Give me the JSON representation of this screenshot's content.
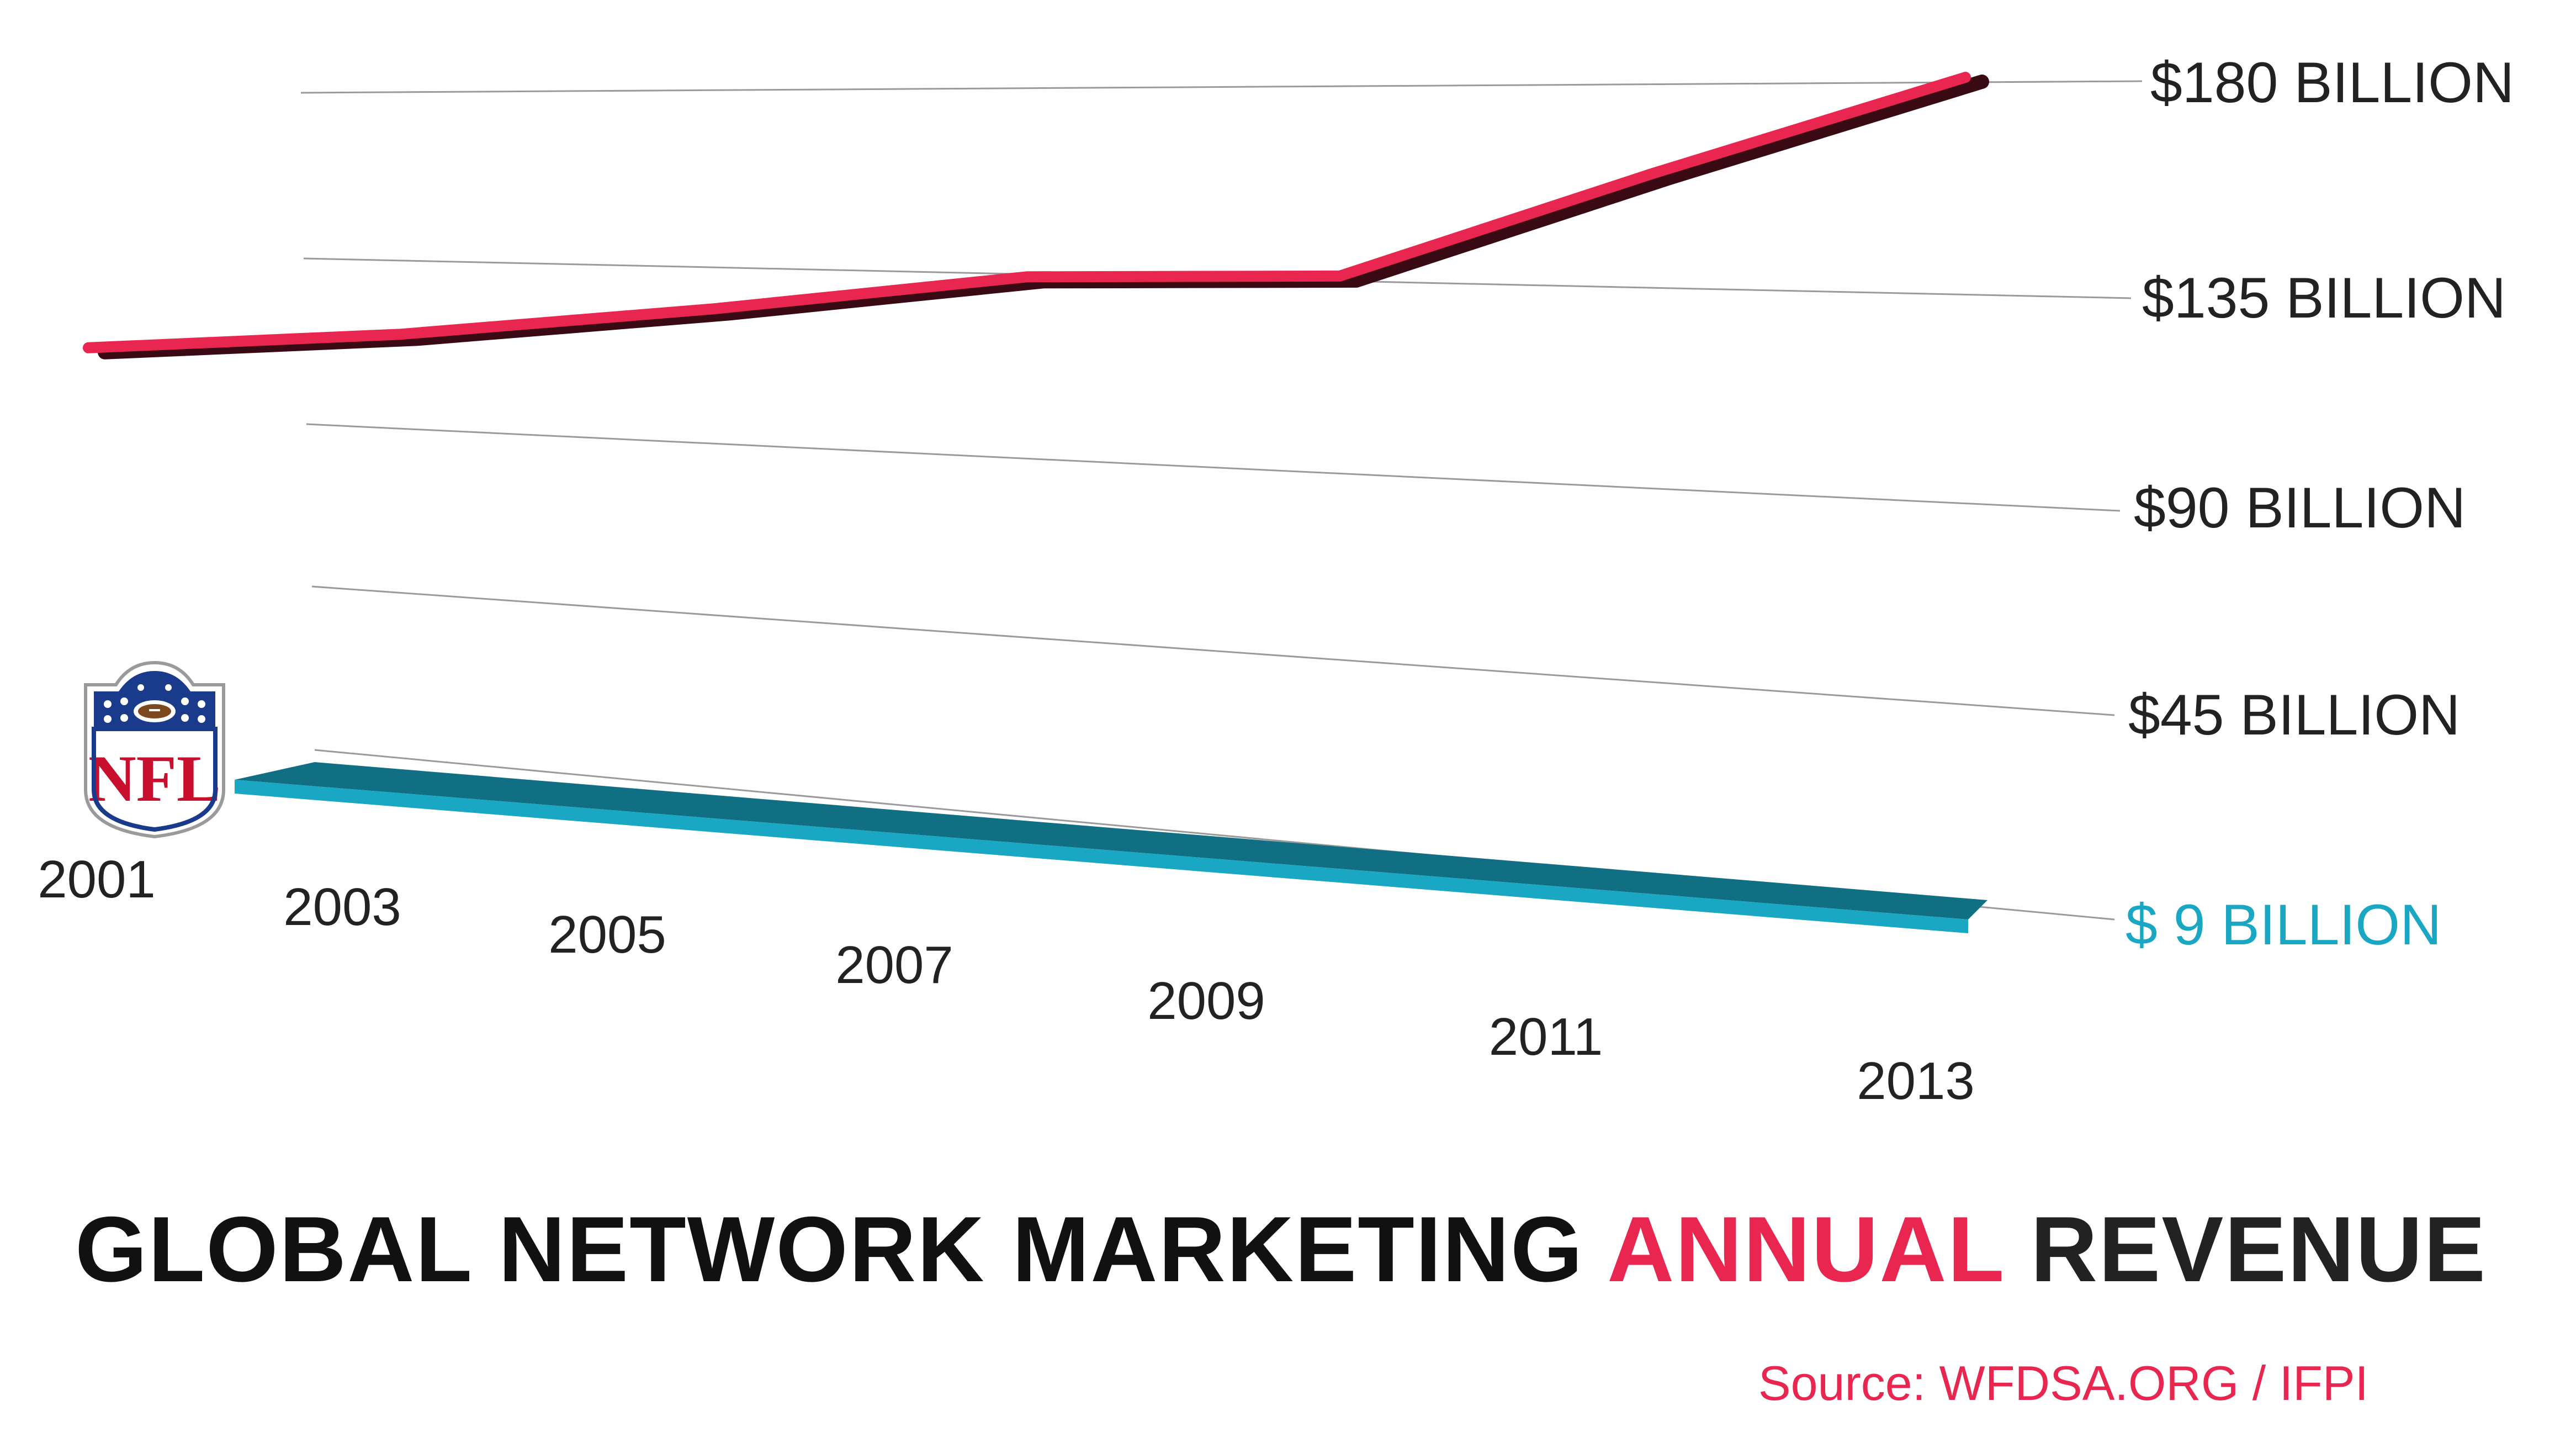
{
  "chart_data": {
    "type": "line",
    "title_parts": [
      "GLOBAL NETWORK MARKETING ",
      "ANNUAL",
      " REVENUE"
    ],
    "source": "Source: WFDSA.ORG / IFPI",
    "x": [
      "2001",
      "2003",
      "2005",
      "2007",
      "2009",
      "2011",
      "2013"
    ],
    "y_ticks": [
      {
        "label": "$180 BILLION",
        "value": 180
      },
      {
        "label": "$135 BILLION",
        "value": 135
      },
      {
        "label": "$90 BILLION",
        "value": 90
      },
      {
        "label": "$45 BILLION",
        "value": 45
      },
      {
        "label": "$ 9 BILLION",
        "value": 9
      }
    ],
    "series": [
      {
        "key": "network-marketing",
        "values": [
          91,
          99,
          110,
          122,
          124,
          154,
          180
        ]
      },
      {
        "key": "nfl",
        "values": [
          9,
          9,
          9,
          9,
          9,
          9,
          9
        ]
      }
    ],
    "ylim": [
      0,
      180
    ],
    "grid": true,
    "logo": "nfl-logo",
    "colors": {
      "network_marketing": "#e8264f",
      "network_marketing_shadow": "#3a0a14",
      "nfl": "#1aa7c4",
      "nfl_dark": "#116f83",
      "title_accent": "#e8264f",
      "gridline": "#9a9a9a"
    }
  }
}
